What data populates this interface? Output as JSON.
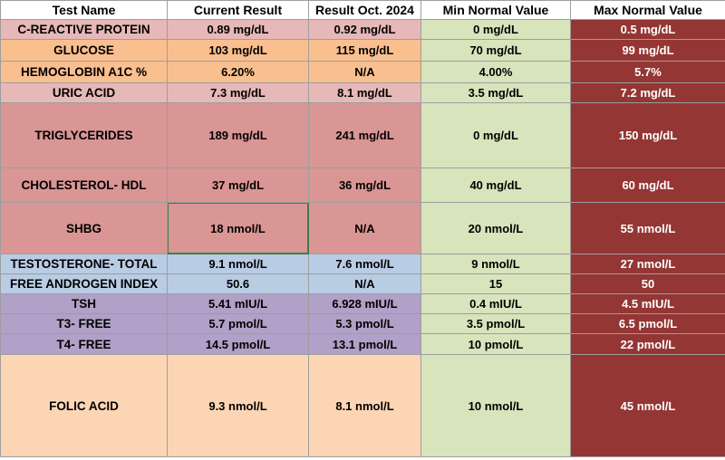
{
  "headers": {
    "test_name": "Test Name",
    "current": "Current Result",
    "previous": "Result Oct. 2024",
    "min": "Min Normal Value",
    "max": "Max Normal Value"
  },
  "colors": {
    "header_bg": "#ffffff",
    "min_col_bg": "#d8e4bc",
    "max_col_bg": "#943634",
    "max_col_text": "#ffffff",
    "grid_line": "#9e9e9e",
    "selected_cell_border": "#3d7d48",
    "group_pink": "#e6b8b7",
    "group_orange": "#fcd5b4",
    "group_rose": "#da9694",
    "group_blue": "#b8cce4",
    "group_purple": "#b1a0c7",
    "group_peach": "#fcd5b4"
  },
  "rows": [
    {
      "name": "C-REACTIVE PROTEIN",
      "current": "0.89 mg/dL",
      "previous": "0.92 mg/dL",
      "min": "0 mg/dL",
      "max": "0.5 mg/dL",
      "fill": "#e6b8b7"
    },
    {
      "name": "GLUCOSE",
      "current": "103 mg/dL",
      "previous": "115 mg/dL",
      "min": "70 mg/dL",
      "max": "99 mg/dL",
      "fill": "#fabf8f"
    },
    {
      "name": "HEMOGLOBIN A1C %",
      "current": "6.20%",
      "previous": "N/A",
      "min": "4.00%",
      "max": "5.7%",
      "fill": "#fabf8f"
    },
    {
      "name": "URIC ACID",
      "current": "7.3 mg/dL",
      "previous": "8.1 mg/dL",
      "min": "3.5 mg/dL",
      "max": "7.2 mg/dL",
      "fill": "#e6b8b7"
    },
    {
      "name": "TRIGLYCERIDES",
      "current": "189 mg/dL",
      "previous": "241 mg/dL",
      "min": "0 mg/dL",
      "max": "150 mg/dL",
      "fill": "#da9694"
    },
    {
      "name": "CHOLESTEROL- HDL",
      "current": "37 mg/dL",
      "previous": "36 mg/dL",
      "min": "40 mg/dL",
      "max": "60 mg/dL",
      "fill": "#da9694"
    },
    {
      "name": "SHBG",
      "current": "18 nmol/L",
      "previous": "N/A",
      "min": "20 nmol/L",
      "max": "55 nmol/L",
      "fill": "#da9694",
      "selected_current": true
    },
    {
      "name": "TESTOSTERONE- TOTAL",
      "current": "9.1 nmol/L",
      "previous": "7.6 nmol/L",
      "min": "9 nmol/L",
      "max": "27 nmol/L",
      "fill": "#b8cce4"
    },
    {
      "name": "FREE ANDROGEN INDEX",
      "current": "50.6",
      "previous": "N/A",
      "min": "15",
      "max": "50",
      "fill": "#b8cce4"
    },
    {
      "name": "TSH",
      "current": "5.41 mIU/L",
      "previous": "6.928 mIU/L",
      "min": "0.4 mIU/L",
      "max": "4.5 mIU/L",
      "fill": "#b1a0c7"
    },
    {
      "name": "T3- FREE",
      "current": "5.7 pmol/L",
      "previous": "5.3 pmol/L",
      "min": "3.5 pmol/L",
      "max": "6.5 pmol/L",
      "fill": "#b1a0c7"
    },
    {
      "name": "T4- FREE",
      "current": "14.5 pmol/L",
      "previous": "13.1 pmol/L",
      "min": "10 pmol/L",
      "max": "22 pmol/L",
      "fill": "#b1a0c7"
    },
    {
      "name": "FOLIC ACID",
      "current": "9.3 nmol/L",
      "previous": "8.1 nmol/L",
      "min": "10 nmol/L",
      "max": "45 nmol/L",
      "fill": "#fcd5b4"
    }
  ]
}
